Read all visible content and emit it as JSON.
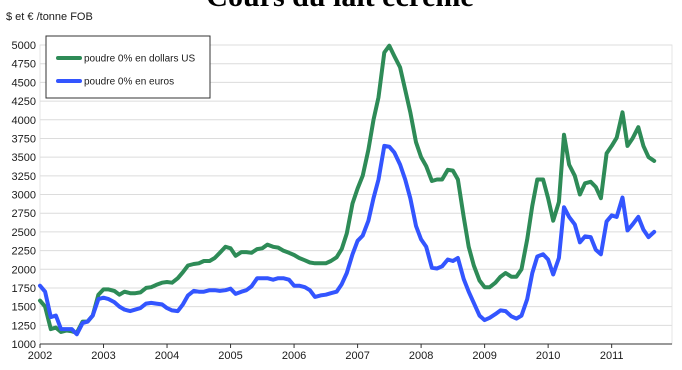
{
  "cutoff_heading": "Cours du lait écrémé",
  "chart_data": {
    "type": "line",
    "unit_label": "$ et € /tonne FOB",
    "ylim": [
      1000,
      5000
    ],
    "xlim": [
      2002.0,
      2011.95
    ],
    "y_ticks": [
      1000,
      1250,
      1500,
      1750,
      2000,
      2250,
      2500,
      2750,
      3000,
      3250,
      3500,
      3750,
      4000,
      4250,
      4500,
      4750,
      5000
    ],
    "x_ticks": [
      2002,
      2003,
      2004,
      2005,
      2006,
      2007,
      2008,
      2009,
      2010,
      2011
    ],
    "grid": true,
    "legend_position": "top-left",
    "colors": {
      "usd": "#2e8b57",
      "eur": "#3355ff"
    },
    "series": [
      {
        "name": "poudre 0% en dollars US",
        "color_key": "usd",
        "points": [
          [
            2002.0,
            1580
          ],
          [
            2002.08,
            1500
          ],
          [
            2002.17,
            1200
          ],
          [
            2002.25,
            1220
          ],
          [
            2002.33,
            1160
          ],
          [
            2002.42,
            1180
          ],
          [
            2002.5,
            1170
          ],
          [
            2002.58,
            1150
          ],
          [
            2002.67,
            1300
          ],
          [
            2002.75,
            1300
          ],
          [
            2002.83,
            1380
          ],
          [
            2002.92,
            1660
          ],
          [
            2003.0,
            1730
          ],
          [
            2003.08,
            1730
          ],
          [
            2003.17,
            1710
          ],
          [
            2003.25,
            1660
          ],
          [
            2003.33,
            1700
          ],
          [
            2003.42,
            1680
          ],
          [
            2003.5,
            1680
          ],
          [
            2003.58,
            1690
          ],
          [
            2003.67,
            1750
          ],
          [
            2003.75,
            1760
          ],
          [
            2003.83,
            1790
          ],
          [
            2003.92,
            1820
          ],
          [
            2004.0,
            1830
          ],
          [
            2004.08,
            1820
          ],
          [
            2004.17,
            1880
          ],
          [
            2004.25,
            1960
          ],
          [
            2004.33,
            2050
          ],
          [
            2004.42,
            2070
          ],
          [
            2004.5,
            2080
          ],
          [
            2004.58,
            2110
          ],
          [
            2004.67,
            2110
          ],
          [
            2004.75,
            2150
          ],
          [
            2004.83,
            2220
          ],
          [
            2004.92,
            2300
          ],
          [
            2005.0,
            2280
          ],
          [
            2005.08,
            2180
          ],
          [
            2005.17,
            2230
          ],
          [
            2005.25,
            2230
          ],
          [
            2005.33,
            2220
          ],
          [
            2005.42,
            2270
          ],
          [
            2005.5,
            2280
          ],
          [
            2005.58,
            2330
          ],
          [
            2005.67,
            2300
          ],
          [
            2005.75,
            2290
          ],
          [
            2005.83,
            2250
          ],
          [
            2005.92,
            2220
          ],
          [
            2006.0,
            2190
          ],
          [
            2006.08,
            2150
          ],
          [
            2006.17,
            2120
          ],
          [
            2006.25,
            2090
          ],
          [
            2006.33,
            2080
          ],
          [
            2006.42,
            2080
          ],
          [
            2006.5,
            2080
          ],
          [
            2006.58,
            2110
          ],
          [
            2006.67,
            2160
          ],
          [
            2006.75,
            2270
          ],
          [
            2006.83,
            2480
          ],
          [
            2006.92,
            2880
          ],
          [
            2007.0,
            3080
          ],
          [
            2007.08,
            3250
          ],
          [
            2007.17,
            3600
          ],
          [
            2007.25,
            4000
          ],
          [
            2007.33,
            4300
          ],
          [
            2007.42,
            4900
          ],
          [
            2007.5,
            4990
          ],
          [
            2007.58,
            4850
          ],
          [
            2007.67,
            4700
          ],
          [
            2007.75,
            4400
          ],
          [
            2007.83,
            4100
          ],
          [
            2007.92,
            3700
          ],
          [
            2008.0,
            3500
          ],
          [
            2008.08,
            3380
          ],
          [
            2008.17,
            3180
          ],
          [
            2008.25,
            3200
          ],
          [
            2008.33,
            3200
          ],
          [
            2008.42,
            3330
          ],
          [
            2008.5,
            3320
          ],
          [
            2008.58,
            3200
          ],
          [
            2008.67,
            2700
          ],
          [
            2008.75,
            2300
          ],
          [
            2008.83,
            2050
          ],
          [
            2008.92,
            1850
          ],
          [
            2009.0,
            1760
          ],
          [
            2009.08,
            1760
          ],
          [
            2009.17,
            1820
          ],
          [
            2009.25,
            1900
          ],
          [
            2009.33,
            1950
          ],
          [
            2009.42,
            1900
          ],
          [
            2009.5,
            1900
          ],
          [
            2009.58,
            2000
          ],
          [
            2009.67,
            2400
          ],
          [
            2009.75,
            2850
          ],
          [
            2009.83,
            3200
          ],
          [
            2009.92,
            3200
          ],
          [
            2010.0,
            2950
          ],
          [
            2010.08,
            2650
          ],
          [
            2010.17,
            2900
          ],
          [
            2010.25,
            3800
          ],
          [
            2010.33,
            3400
          ],
          [
            2010.42,
            3250
          ],
          [
            2010.5,
            3000
          ],
          [
            2010.58,
            3150
          ],
          [
            2010.67,
            3170
          ],
          [
            2010.75,
            3100
          ],
          [
            2010.83,
            2950
          ],
          [
            2010.92,
            3550
          ],
          [
            2011.0,
            3650
          ],
          [
            2011.08,
            3760
          ],
          [
            2011.17,
            4100
          ],
          [
            2011.25,
            3650
          ],
          [
            2011.33,
            3750
          ],
          [
            2011.42,
            3900
          ],
          [
            2011.5,
            3650
          ],
          [
            2011.58,
            3500
          ],
          [
            2011.67,
            3450
          ]
        ]
      },
      {
        "name": "poudre 0% en euros",
        "color_key": "eur",
        "points": [
          [
            2002.0,
            1780
          ],
          [
            2002.08,
            1700
          ],
          [
            2002.17,
            1360
          ],
          [
            2002.25,
            1380
          ],
          [
            2002.33,
            1200
          ],
          [
            2002.42,
            1200
          ],
          [
            2002.5,
            1200
          ],
          [
            2002.58,
            1130
          ],
          [
            2002.67,
            1280
          ],
          [
            2002.75,
            1300
          ],
          [
            2002.83,
            1380
          ],
          [
            2002.92,
            1600
          ],
          [
            2003.0,
            1620
          ],
          [
            2003.08,
            1600
          ],
          [
            2003.17,
            1560
          ],
          [
            2003.25,
            1500
          ],
          [
            2003.33,
            1460
          ],
          [
            2003.42,
            1440
          ],
          [
            2003.5,
            1460
          ],
          [
            2003.58,
            1480
          ],
          [
            2003.67,
            1540
          ],
          [
            2003.75,
            1550
          ],
          [
            2003.83,
            1540
          ],
          [
            2003.92,
            1530
          ],
          [
            2004.0,
            1480
          ],
          [
            2004.08,
            1450
          ],
          [
            2004.17,
            1440
          ],
          [
            2004.25,
            1530
          ],
          [
            2004.33,
            1650
          ],
          [
            2004.42,
            1710
          ],
          [
            2004.5,
            1700
          ],
          [
            2004.58,
            1700
          ],
          [
            2004.67,
            1720
          ],
          [
            2004.75,
            1720
          ],
          [
            2004.83,
            1710
          ],
          [
            2004.92,
            1720
          ],
          [
            2005.0,
            1740
          ],
          [
            2005.08,
            1670
          ],
          [
            2005.17,
            1700
          ],
          [
            2005.25,
            1720
          ],
          [
            2005.33,
            1770
          ],
          [
            2005.42,
            1880
          ],
          [
            2005.5,
            1880
          ],
          [
            2005.58,
            1880
          ],
          [
            2005.67,
            1860
          ],
          [
            2005.75,
            1880
          ],
          [
            2005.83,
            1880
          ],
          [
            2005.92,
            1860
          ],
          [
            2006.0,
            1780
          ],
          [
            2006.08,
            1780
          ],
          [
            2006.17,
            1760
          ],
          [
            2006.25,
            1720
          ],
          [
            2006.33,
            1630
          ],
          [
            2006.42,
            1650
          ],
          [
            2006.5,
            1660
          ],
          [
            2006.58,
            1680
          ],
          [
            2006.67,
            1700
          ],
          [
            2006.75,
            1800
          ],
          [
            2006.83,
            1950
          ],
          [
            2006.92,
            2200
          ],
          [
            2007.0,
            2380
          ],
          [
            2007.08,
            2450
          ],
          [
            2007.17,
            2650
          ],
          [
            2007.25,
            2950
          ],
          [
            2007.33,
            3200
          ],
          [
            2007.42,
            3650
          ],
          [
            2007.5,
            3640
          ],
          [
            2007.58,
            3560
          ],
          [
            2007.67,
            3400
          ],
          [
            2007.75,
            3200
          ],
          [
            2007.83,
            2950
          ],
          [
            2007.92,
            2580
          ],
          [
            2008.0,
            2400
          ],
          [
            2008.08,
            2300
          ],
          [
            2008.17,
            2020
          ],
          [
            2008.25,
            2010
          ],
          [
            2008.33,
            2040
          ],
          [
            2008.42,
            2130
          ],
          [
            2008.5,
            2110
          ],
          [
            2008.58,
            2150
          ],
          [
            2008.67,
            1870
          ],
          [
            2008.75,
            1700
          ],
          [
            2008.83,
            1550
          ],
          [
            2008.92,
            1380
          ],
          [
            2009.0,
            1320
          ],
          [
            2009.08,
            1350
          ],
          [
            2009.17,
            1400
          ],
          [
            2009.25,
            1450
          ],
          [
            2009.33,
            1440
          ],
          [
            2009.42,
            1370
          ],
          [
            2009.5,
            1340
          ],
          [
            2009.58,
            1380
          ],
          [
            2009.67,
            1600
          ],
          [
            2009.75,
            1950
          ],
          [
            2009.83,
            2170
          ],
          [
            2009.92,
            2200
          ],
          [
            2010.0,
            2130
          ],
          [
            2010.08,
            1930
          ],
          [
            2010.17,
            2150
          ],
          [
            2010.25,
            2830
          ],
          [
            2010.33,
            2700
          ],
          [
            2010.42,
            2600
          ],
          [
            2010.5,
            2360
          ],
          [
            2010.58,
            2440
          ],
          [
            2010.67,
            2430
          ],
          [
            2010.75,
            2260
          ],
          [
            2010.83,
            2200
          ],
          [
            2010.92,
            2640
          ],
          [
            2011.0,
            2720
          ],
          [
            2011.08,
            2700
          ],
          [
            2011.17,
            2960
          ],
          [
            2011.25,
            2520
          ],
          [
            2011.33,
            2600
          ],
          [
            2011.42,
            2700
          ],
          [
            2011.5,
            2530
          ],
          [
            2011.58,
            2430
          ],
          [
            2011.67,
            2500
          ]
        ]
      }
    ]
  }
}
